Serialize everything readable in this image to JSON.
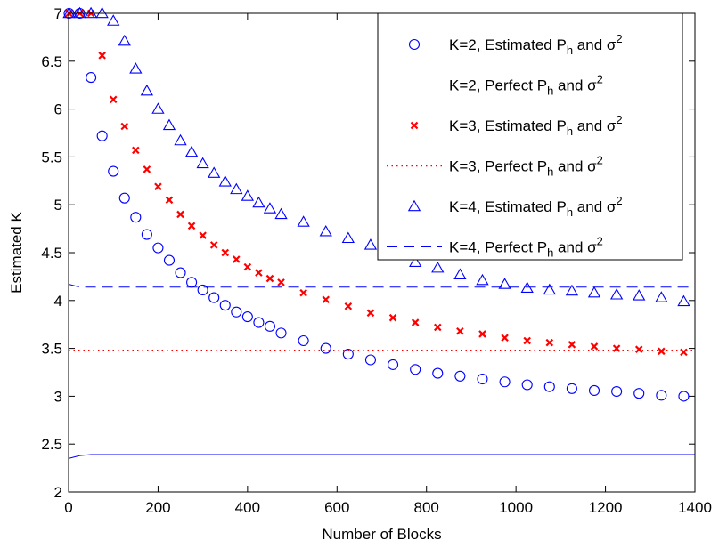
{
  "chart_data": {
    "type": "scatter",
    "xlabel": "Number of Blocks",
    "ylabel": "Estimated K",
    "xlim": [
      0,
      1400
    ],
    "ylim": [
      2,
      7
    ],
    "x_ticks": [
      "0",
      "200",
      "400",
      "600",
      "800",
      "1000",
      "1200",
      "1400"
    ],
    "y_ticks": [
      "2",
      "2.5",
      "3",
      "3.5",
      "4",
      "4.5",
      "5",
      "5.5",
      "6",
      "6.5",
      "7"
    ],
    "grid": false,
    "legend_position": "top-right",
    "series": [
      {
        "name": "K=2, Estimated P_h and σ^2",
        "legend_prefix": "K=2, Estimated P",
        "legend_sub": "h",
        "legend_mid": " and σ",
        "legend_sup": "2",
        "marker": "circle",
        "line": "none",
        "color": "#0000ff",
        "x": [
          1,
          25,
          50,
          75,
          100,
          125,
          150,
          175,
          200,
          225,
          250,
          275,
          300,
          325,
          350,
          375,
          400,
          425,
          450,
          475,
          525,
          575,
          625,
          675,
          725,
          775,
          825,
          875,
          925,
          975,
          1025,
          1075,
          1125,
          1175,
          1225,
          1275,
          1325,
          1375
        ],
        "y": [
          7.0,
          7.0,
          6.33,
          5.72,
          5.35,
          5.07,
          4.87,
          4.69,
          4.55,
          4.42,
          4.29,
          4.19,
          4.11,
          4.03,
          3.95,
          3.88,
          3.83,
          3.77,
          3.73,
          3.66,
          3.58,
          3.5,
          3.44,
          3.38,
          3.33,
          3.28,
          3.24,
          3.21,
          3.18,
          3.15,
          3.12,
          3.1,
          3.08,
          3.06,
          3.05,
          3.03,
          3.01,
          3.0
        ]
      },
      {
        "name": "K=2, Perfect P_h and σ^2",
        "legend_prefix": "K=2, Perfect P",
        "legend_sub": "h",
        "legend_mid": " and σ",
        "legend_sup": "2",
        "marker": "none",
        "line": "solid",
        "color": "#0000ff",
        "x": [
          0,
          25,
          50,
          100,
          200,
          300,
          400,
          600,
          800,
          1000,
          1200,
          1400
        ],
        "y": [
          2.35,
          2.38,
          2.39,
          2.39,
          2.39,
          2.39,
          2.39,
          2.39,
          2.39,
          2.39,
          2.39,
          2.39
        ]
      },
      {
        "name": "K=3, Estimated P_h and σ^2",
        "legend_prefix": "K=3, Estimated P",
        "legend_sub": "h",
        "legend_mid": " and σ",
        "legend_sup": "2",
        "marker": "x",
        "line": "none",
        "color": "#ff0000",
        "x": [
          1,
          25,
          50,
          75,
          100,
          125,
          150,
          175,
          200,
          225,
          250,
          275,
          300,
          325,
          350,
          375,
          400,
          425,
          450,
          475,
          525,
          575,
          625,
          675,
          725,
          775,
          825,
          875,
          925,
          975,
          1025,
          1075,
          1125,
          1175,
          1225,
          1275,
          1325,
          1375
        ],
        "y": [
          7.0,
          7.0,
          7.0,
          6.56,
          6.1,
          5.82,
          5.57,
          5.37,
          5.19,
          5.05,
          4.9,
          4.78,
          4.68,
          4.58,
          4.5,
          4.43,
          4.35,
          4.29,
          4.23,
          4.19,
          4.08,
          4.01,
          3.94,
          3.87,
          3.82,
          3.77,
          3.72,
          3.68,
          3.65,
          3.61,
          3.58,
          3.56,
          3.54,
          3.52,
          3.5,
          3.49,
          3.47,
          3.46
        ]
      },
      {
        "name": "K=3, Perfect P_h and σ^2",
        "legend_prefix": "K=3, Perfect P",
        "legend_sub": "h",
        "legend_mid": " and σ",
        "legend_sup": "2",
        "marker": "none",
        "line": "dotted",
        "color": "#ff0000",
        "x": [
          0,
          1400
        ],
        "y": [
          3.48,
          3.48
        ]
      },
      {
        "name": "K=4, Estimated P_h and σ^2",
        "legend_prefix": "K=4, Estimated P",
        "legend_sub": "h",
        "legend_mid": " and σ",
        "legend_sup": "2",
        "marker": "triangle",
        "line": "none",
        "color": "#0000ff",
        "x": [
          1,
          25,
          50,
          75,
          100,
          125,
          150,
          175,
          200,
          225,
          250,
          275,
          300,
          325,
          350,
          375,
          400,
          425,
          450,
          475,
          525,
          575,
          625,
          675,
          725,
          775,
          825,
          875,
          925,
          975,
          1025,
          1075,
          1125,
          1175,
          1225,
          1275,
          1325,
          1375
        ],
        "y": [
          7.0,
          7.0,
          7.0,
          7.0,
          6.92,
          6.71,
          6.42,
          6.19,
          6.0,
          5.83,
          5.67,
          5.55,
          5.43,
          5.33,
          5.24,
          5.16,
          5.09,
          5.02,
          4.96,
          4.9,
          4.82,
          4.72,
          4.65,
          4.58,
          4.53,
          4.4,
          4.34,
          4.27,
          4.21,
          4.17,
          4.13,
          4.11,
          4.1,
          4.08,
          4.06,
          4.05,
          4.03,
          3.99
        ]
      },
      {
        "name": "K=4, Perfect P_h and σ^2",
        "legend_prefix": "K=4, Perfect P",
        "legend_sub": "h",
        "legend_mid": " and σ",
        "legend_sup": "2",
        "marker": "none",
        "line": "dashed",
        "color": "#0000ff",
        "x": [
          0,
          25,
          50,
          100,
          200,
          400,
          600,
          800,
          1000,
          1200,
          1400
        ],
        "y": [
          4.17,
          4.14,
          4.14,
          4.14,
          4.14,
          4.14,
          4.14,
          4.14,
          4.14,
          4.14,
          4.14
        ]
      }
    ]
  }
}
